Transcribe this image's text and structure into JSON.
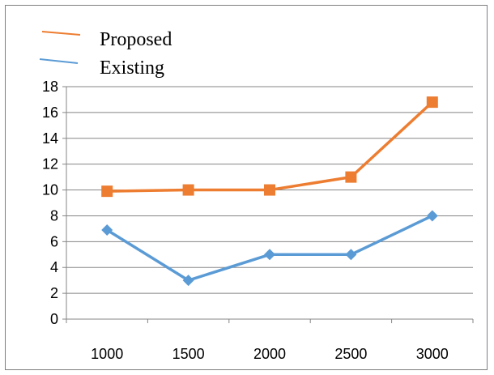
{
  "chart_data": {
    "type": "line",
    "categories": [
      "1000",
      "1500",
      "2000",
      "2500",
      "3000"
    ],
    "series": [
      {
        "name": "Proposed",
        "values": [
          9.9,
          10,
          10,
          11,
          16.8
        ],
        "color": "#ed7d31",
        "marker": "square"
      },
      {
        "name": "Existing",
        "values": [
          6.9,
          3,
          5,
          5,
          8
        ],
        "color": "#5b9bd5",
        "marker": "diamond"
      }
    ],
    "y_ticks": [
      "0",
      "2",
      "4",
      "6",
      "8",
      "10",
      "12",
      "14",
      "16",
      "18"
    ],
    "ylim": [
      0,
      18
    ],
    "grid": true,
    "legend_position": "top-left"
  }
}
